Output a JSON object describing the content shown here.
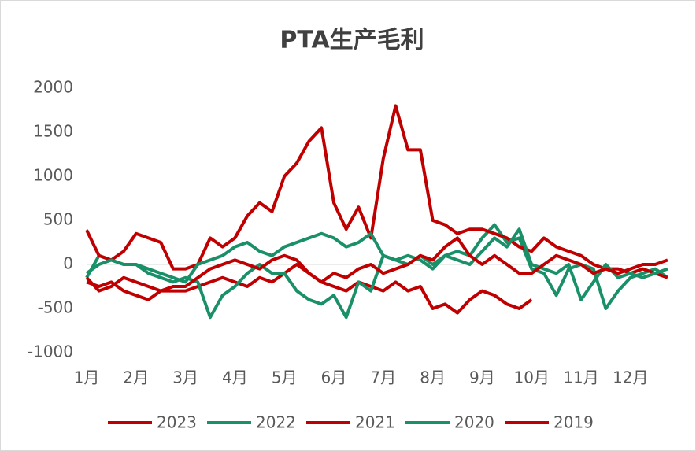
{
  "chart_data": {
    "type": "line",
    "title": "PTA生产毛利",
    "categories": [
      "1月",
      null,
      null,
      null,
      "2月",
      null,
      null,
      null,
      "3月",
      null,
      null,
      null,
      "4月",
      null,
      null,
      null,
      "5月",
      null,
      null,
      null,
      "6月",
      null,
      null,
      null,
      "7月",
      null,
      null,
      null,
      "8月",
      null,
      null,
      null,
      "9月",
      null,
      null,
      null,
      "10月",
      null,
      null,
      null,
      "11月",
      null,
      null,
      null,
      "12月",
      null,
      null,
      null
    ],
    "series": [
      {
        "name": "2023",
        "color": "#c00000",
        "values": [
          -200,
          -250,
          -200,
          -300,
          -350,
          -400,
          -300,
          -300,
          -300,
          -250,
          -200,
          -150,
          -200,
          -250,
          -150,
          -200,
          -100,
          0,
          -100,
          -200,
          -250,
          -300,
          -200,
          -250,
          -300,
          -200,
          -300,
          -250,
          -500,
          -450,
          -550,
          -400,
          -300,
          -350,
          -450,
          -500,
          -400,
          null,
          null,
          null,
          null,
          null,
          null,
          null,
          null,
          null,
          null,
          null
        ]
      },
      {
        "name": "2022",
        "color": "#1a9068",
        "values": [
          -150,
          100,
          50,
          0,
          0,
          -100,
          -150,
          -200,
          -150,
          -200,
          -600,
          -350,
          -250,
          -100,
          0,
          -100,
          -100,
          -300,
          -400,
          -450,
          -350,
          -600,
          -200,
          -300,
          100,
          50,
          0,
          100,
          0,
          100,
          150,
          100,
          300,
          450,
          250,
          300,
          -50,
          -100,
          -350,
          -50,
          0,
          -50,
          -500,
          -300,
          -150,
          -100,
          -50,
          -150
        ]
      },
      {
        "name": "2021",
        "color": "#c00000",
        "values": [
          390,
          100,
          50,
          150,
          350,
          300,
          250,
          -50,
          -50,
          0,
          300,
          200,
          300,
          550,
          700,
          600,
          1000,
          1150,
          1400,
          1550,
          700,
          400,
          650,
          300,
          1200,
          1800,
          1300,
          1300,
          500,
          450,
          350,
          400,
          400,
          350,
          300,
          200,
          150,
          300,
          200,
          150,
          100,
          0,
          -50,
          -50,
          -100,
          -50,
          -100,
          -150
        ]
      },
      {
        "name": "2020",
        "color": "#1a9068",
        "values": [
          -100,
          0,
          50,
          0,
          0,
          -50,
          -100,
          -150,
          -200,
          0,
          50,
          100,
          200,
          250,
          150,
          100,
          200,
          250,
          300,
          350,
          300,
          200,
          250,
          350,
          100,
          50,
          100,
          50,
          -50,
          100,
          50,
          0,
          150,
          300,
          200,
          400,
          0,
          -50,
          -100,
          0,
          -400,
          -200,
          0,
          -150,
          -100,
          -150,
          -100,
          -50
        ]
      },
      {
        "name": "2019",
        "color": "#c00000",
        "values": [
          -150,
          -300,
          -250,
          -150,
          -200,
          -250,
          -300,
          -250,
          -250,
          -150,
          -50,
          0,
          50,
          0,
          -50,
          50,
          100,
          50,
          -100,
          -200,
          -100,
          -150,
          -50,
          0,
          -100,
          -50,
          0,
          100,
          50,
          200,
          300,
          100,
          0,
          100,
          0,
          -100,
          -100,
          0,
          100,
          50,
          0,
          -100,
          -50,
          -100,
          -50,
          0,
          0,
          50
        ]
      }
    ],
    "ylim": [
      -1000,
      2000
    ],
    "yticks": [
      -1000,
      -500,
      0,
      500,
      1000,
      1500,
      2000
    ]
  }
}
